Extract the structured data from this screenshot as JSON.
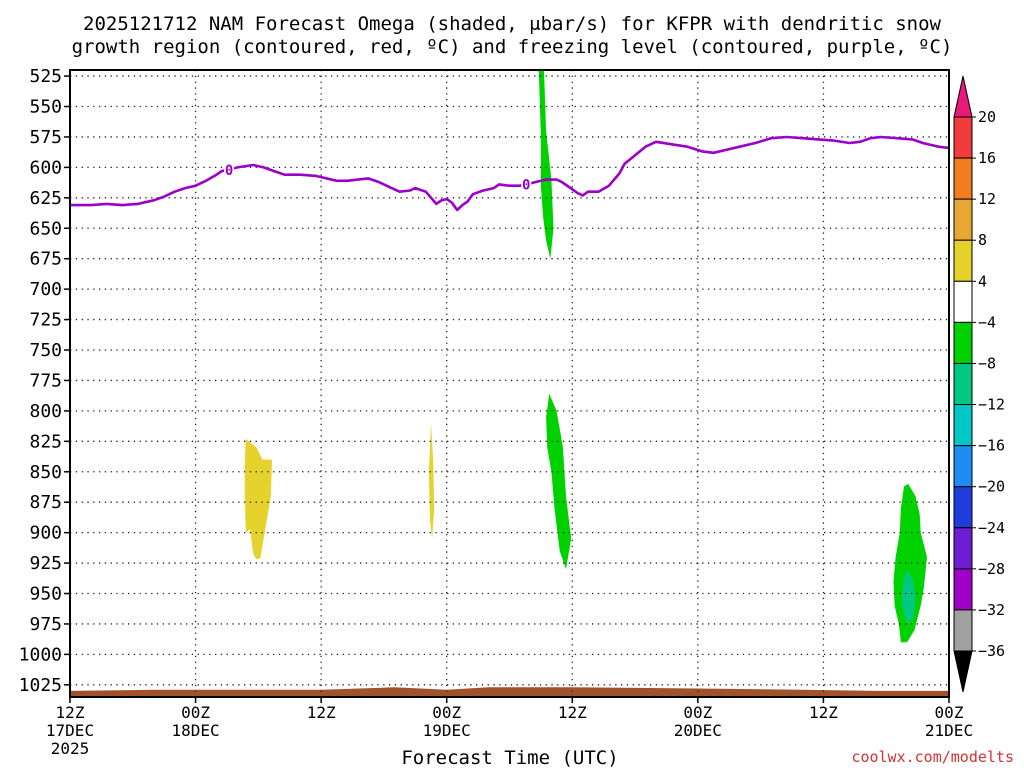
{
  "chart_data": {
    "type": "heatmap",
    "title_line1": "2025121712 NAM Forecast Omega (shaded, μbar/s) for KFPR with dendritic snow",
    "title_line2": "growth region (contoured, red, ºC) and freezing level (contoured, purple, ºC)",
    "xlabel": "Forecast Time (UTC)",
    "watermark": "coolwx.com/modelts",
    "y_axis": {
      "units": "hPa",
      "range": [
        1035,
        520
      ],
      "ticks": [
        525,
        550,
        575,
        600,
        625,
        650,
        675,
        700,
        725,
        750,
        775,
        800,
        825,
        850,
        875,
        900,
        925,
        950,
        975,
        1000,
        1025
      ]
    },
    "x_axis": {
      "units": "forecast hour",
      "range": [
        0,
        84
      ],
      "ticks": [
        {
          "hour": 0,
          "label": "12Z",
          "sub": "17DEC",
          "sub2": "2025"
        },
        {
          "hour": 12,
          "label": "00Z",
          "sub": "18DEC",
          "sub2": ""
        },
        {
          "hour": 24,
          "label": "12Z",
          "sub": "",
          "sub2": ""
        },
        {
          "hour": 36,
          "label": "00Z",
          "sub": "19DEC",
          "sub2": ""
        },
        {
          "hour": 48,
          "label": "12Z",
          "sub": "",
          "sub2": ""
        },
        {
          "hour": 60,
          "label": "00Z",
          "sub": "20DEC",
          "sub2": ""
        },
        {
          "hour": 72,
          "label": "12Z",
          "sub": "",
          "sub2": ""
        },
        {
          "hour": 84,
          "label": "00Z",
          "sub": "21DEC",
          "sub2": ""
        }
      ]
    },
    "colorbar": {
      "labels": [
        "20",
        "16",
        "12",
        "8",
        "4",
        "−4",
        "−8",
        "−12",
        "−16",
        "−20",
        "−24",
        "−28",
        "−32",
        "−36"
      ],
      "bins": [
        {
          "range": ">20",
          "color": "#e8197a"
        },
        {
          "range": "16 to 20",
          "color": "#f23c3c"
        },
        {
          "range": "12 to 16",
          "color": "#f07d1e"
        },
        {
          "range": "8 to 12",
          "color": "#e6a832"
        },
        {
          "range": "4 to 8",
          "color": "#e6d22d"
        },
        {
          "range": "-4 to 4",
          "color": "#ffffff"
        },
        {
          "range": "-8 to -4",
          "color": "#00d200"
        },
        {
          "range": "-12 to -8",
          "color": "#00c882"
        },
        {
          "range": "-16 to -12",
          "color": "#00c8c8"
        },
        {
          "range": "-20 to -16",
          "color": "#1e8cf0"
        },
        {
          "range": "-24 to -20",
          "color": "#1e3cdc"
        },
        {
          "range": "-28 to -24",
          "color": "#6e1ed2"
        },
        {
          "range": "-32 to -28",
          "color": "#a000c8"
        },
        {
          "range": "-36 to -32",
          "color": "#a0a0a0"
        },
        {
          "range": "<-36",
          "color": "#000000"
        }
      ]
    },
    "freezing_level": {
      "label": "0",
      "color": "#9b00c8",
      "label_hours": [
        15.2,
        43.6
      ],
      "points": [
        [
          0,
          631
        ],
        [
          2,
          631
        ],
        [
          3.5,
          630
        ],
        [
          5,
          631
        ],
        [
          6.5,
          630
        ],
        [
          8,
          627
        ],
        [
          9,
          624
        ],
        [
          10,
          620
        ],
        [
          11,
          617
        ],
        [
          12,
          615
        ],
        [
          12.5,
          613
        ],
        [
          13,
          611
        ],
        [
          14,
          606
        ],
        [
          14.5,
          603
        ],
        [
          15.2,
          602
        ],
        [
          16,
          600
        ],
        [
          17.5,
          598
        ],
        [
          18.5,
          600
        ],
        [
          19.5,
          603
        ],
        [
          20.5,
          606
        ],
        [
          22,
          606
        ],
        [
          23.5,
          607
        ],
        [
          24.5,
          609
        ],
        [
          25.5,
          611
        ],
        [
          26.5,
          611
        ],
        [
          27.5,
          610
        ],
        [
          28.5,
          609
        ],
        [
          29.5,
          612
        ],
        [
          30.5,
          616
        ],
        [
          31.5,
          620
        ],
        [
          32.5,
          619
        ],
        [
          33,
          617
        ],
        [
          34,
          620
        ],
        [
          35,
          630
        ],
        [
          35.5,
          627
        ],
        [
          36,
          626
        ],
        [
          36.5,
          629
        ],
        [
          37,
          635
        ],
        [
          37.5,
          631
        ],
        [
          38,
          628
        ],
        [
          38.5,
          622
        ],
        [
          39.5,
          619
        ],
        [
          40.5,
          617
        ],
        [
          41,
          614
        ],
        [
          42,
          615
        ],
        [
          43,
          615
        ],
        [
          43.6,
          614
        ],
        [
          44.5,
          612
        ],
        [
          45.5,
          610
        ],
        [
          46.5,
          610
        ],
        [
          47,
          612
        ],
        [
          48,
          618
        ],
        [
          48.5,
          621
        ],
        [
          49,
          623
        ],
        [
          49.5,
          620
        ],
        [
          50.5,
          620
        ],
        [
          51.5,
          615
        ],
        [
          52.5,
          605
        ],
        [
          53,
          597
        ],
        [
          54,
          590
        ],
        [
          55,
          583
        ],
        [
          56,
          579
        ],
        [
          57.5,
          581
        ],
        [
          59,
          583
        ],
        [
          60.5,
          587
        ],
        [
          61.5,
          588
        ],
        [
          62.5,
          586
        ],
        [
          64,
          583
        ],
        [
          65.5,
          580
        ],
        [
          67,
          576
        ],
        [
          68.5,
          575
        ],
        [
          70,
          576
        ],
        [
          71.5,
          577
        ],
        [
          73,
          578
        ],
        [
          74.5,
          580
        ],
        [
          75.5,
          579
        ],
        [
          76.5,
          576
        ],
        [
          77.5,
          575
        ],
        [
          79,
          576
        ],
        [
          80.5,
          577
        ],
        [
          81.5,
          580
        ],
        [
          82.5,
          582
        ],
        [
          83,
          583
        ],
        [
          84,
          584
        ],
        [
          85.5,
          583
        ],
        [
          86.5,
          580
        ]
      ]
    },
    "omega_regions": [
      {
        "bin": "4 to 8",
        "points": [
          [
            16.8,
            823
          ],
          [
            17.8,
            830
          ],
          [
            18.4,
            840
          ],
          [
            19.3,
            840
          ],
          [
            19.2,
            870
          ],
          [
            18.7,
            895
          ],
          [
            18.5,
            905
          ],
          [
            18.2,
            921
          ],
          [
            17.8,
            922
          ],
          [
            17.5,
            917
          ],
          [
            17.2,
            897
          ],
          [
            16.8,
            900
          ],
          [
            16.7,
            870
          ],
          [
            16.7,
            840
          ]
        ]
      },
      {
        "bin": "4 to 8",
        "points": [
          [
            34.5,
            810
          ],
          [
            34.7,
            840
          ],
          [
            34.8,
            880
          ],
          [
            34.6,
            905
          ],
          [
            34.4,
            890
          ],
          [
            34.3,
            850
          ]
        ]
      },
      {
        "bin": "-8 to -4",
        "points": [
          [
            44.8,
            520
          ],
          [
            45.3,
            520
          ],
          [
            45.5,
            570
          ],
          [
            46.0,
            610
          ],
          [
            46.2,
            650
          ],
          [
            45.9,
            675
          ],
          [
            45.5,
            660
          ],
          [
            45.2,
            640
          ],
          [
            45.0,
            615
          ],
          [
            45.0,
            575
          ]
        ]
      },
      {
        "bin": "-8 to -4",
        "points": [
          [
            45.8,
            786
          ],
          [
            46.5,
            800
          ],
          [
            47.1,
            830
          ],
          [
            47.4,
            870
          ],
          [
            47.9,
            905
          ],
          [
            47.4,
            930
          ],
          [
            46.8,
            915
          ],
          [
            46.3,
            880
          ],
          [
            46.0,
            850
          ],
          [
            45.6,
            830
          ],
          [
            45.5,
            805
          ]
        ]
      },
      {
        "bin": "-8 to -4",
        "points": [
          [
            80.1,
            860
          ],
          [
            80.8,
            870
          ],
          [
            81.2,
            885
          ],
          [
            81.3,
            900
          ],
          [
            81.9,
            920
          ],
          [
            81.6,
            945
          ],
          [
            81.3,
            960
          ],
          [
            80.7,
            980
          ],
          [
            80.0,
            990
          ],
          [
            79.4,
            990
          ],
          [
            79.2,
            975
          ],
          [
            78.8,
            960
          ],
          [
            78.7,
            940
          ],
          [
            78.9,
            920
          ],
          [
            79.3,
            900
          ],
          [
            79.4,
            880
          ],
          [
            79.7,
            862
          ]
        ]
      },
      {
        "bin": "-12 to -8",
        "points": [
          [
            80.0,
            930
          ],
          [
            80.6,
            940
          ],
          [
            80.8,
            955
          ],
          [
            80.6,
            970
          ],
          [
            80.0,
            975
          ],
          [
            79.5,
            960
          ],
          [
            79.6,
            940
          ]
        ]
      },
      {
        "bin": "-8 to -4",
        "points": [
          [
            84.0,
            875
          ],
          [
            84.2,
            855
          ],
          [
            84.8,
            840
          ],
          [
            85.3,
            835
          ],
          [
            85.6,
            860
          ],
          [
            85.5,
            900
          ],
          [
            85.3,
            940
          ],
          [
            84.9,
            960
          ],
          [
            84.4,
            970
          ],
          [
            84.2,
            960
          ]
        ]
      }
    ],
    "terrain": {
      "color": "#a0522d",
      "top_points": [
        [
          0,
          1030
        ],
        [
          8,
          1029
        ],
        [
          16,
          1029
        ],
        [
          24,
          1029
        ],
        [
          31,
          1027
        ],
        [
          36,
          1029
        ],
        [
          40,
          1027
        ],
        [
          48,
          1027
        ],
        [
          60,
          1028
        ],
        [
          70,
          1029
        ],
        [
          77,
          1030
        ],
        [
          84,
          1030
        ]
      ]
    }
  }
}
